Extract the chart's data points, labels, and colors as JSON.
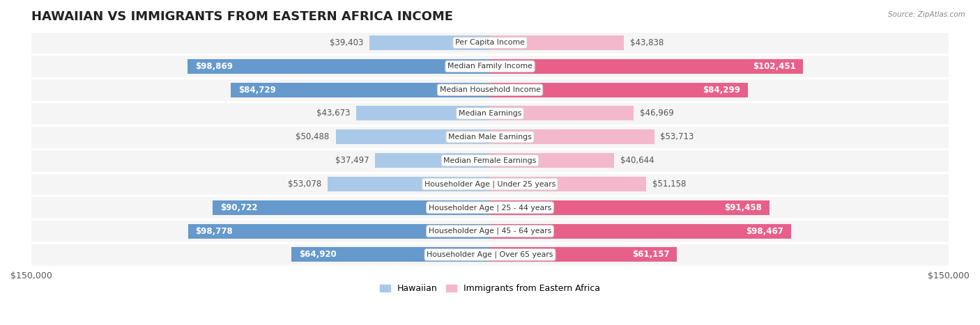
{
  "title": "HAWAIIAN VS IMMIGRANTS FROM EASTERN AFRICA INCOME",
  "source": "Source: ZipAtlas.com",
  "categories": [
    "Per Capita Income",
    "Median Family Income",
    "Median Household Income",
    "Median Earnings",
    "Median Male Earnings",
    "Median Female Earnings",
    "Householder Age | Under 25 years",
    "Householder Age | 25 - 44 years",
    "Householder Age | 45 - 64 years",
    "Householder Age | Over 65 years"
  ],
  "hawaiian_values": [
    39403,
    98869,
    84729,
    43673,
    50488,
    37497,
    53078,
    90722,
    98778,
    64920
  ],
  "eastern_africa_values": [
    43838,
    102451,
    84299,
    46969,
    53713,
    40644,
    51158,
    91458,
    98467,
    61157
  ],
  "hawaiian_labels": [
    "$39,403",
    "$98,869",
    "$84,729",
    "$43,673",
    "$50,488",
    "$37,497",
    "$53,078",
    "$90,722",
    "$98,778",
    "$64,920"
  ],
  "eastern_africa_labels": [
    "$43,838",
    "$102,451",
    "$84,299",
    "$46,969",
    "$53,713",
    "$40,644",
    "$51,158",
    "$91,458",
    "$98,467",
    "$61,157"
  ],
  "hawaiian_color_light": "#aac9e8",
  "hawaiian_color_dark": "#6699cc",
  "eastern_africa_color_light": "#f4b8cc",
  "eastern_africa_color_dark": "#e8608a",
  "max_value": 150000,
  "bg_color": "#ffffff",
  "row_bg_light": "#f5f5f5",
  "row_bg_dark": "#ebebeb",
  "inside_label_color": "#ffffff",
  "outside_label_color": "#555555",
  "title_fontsize": 13,
  "bar_label_fontsize": 8.5,
  "category_fontsize": 7.8,
  "legend_fontsize": 9,
  "axis_label": "$150,000",
  "inside_threshold": 55000
}
